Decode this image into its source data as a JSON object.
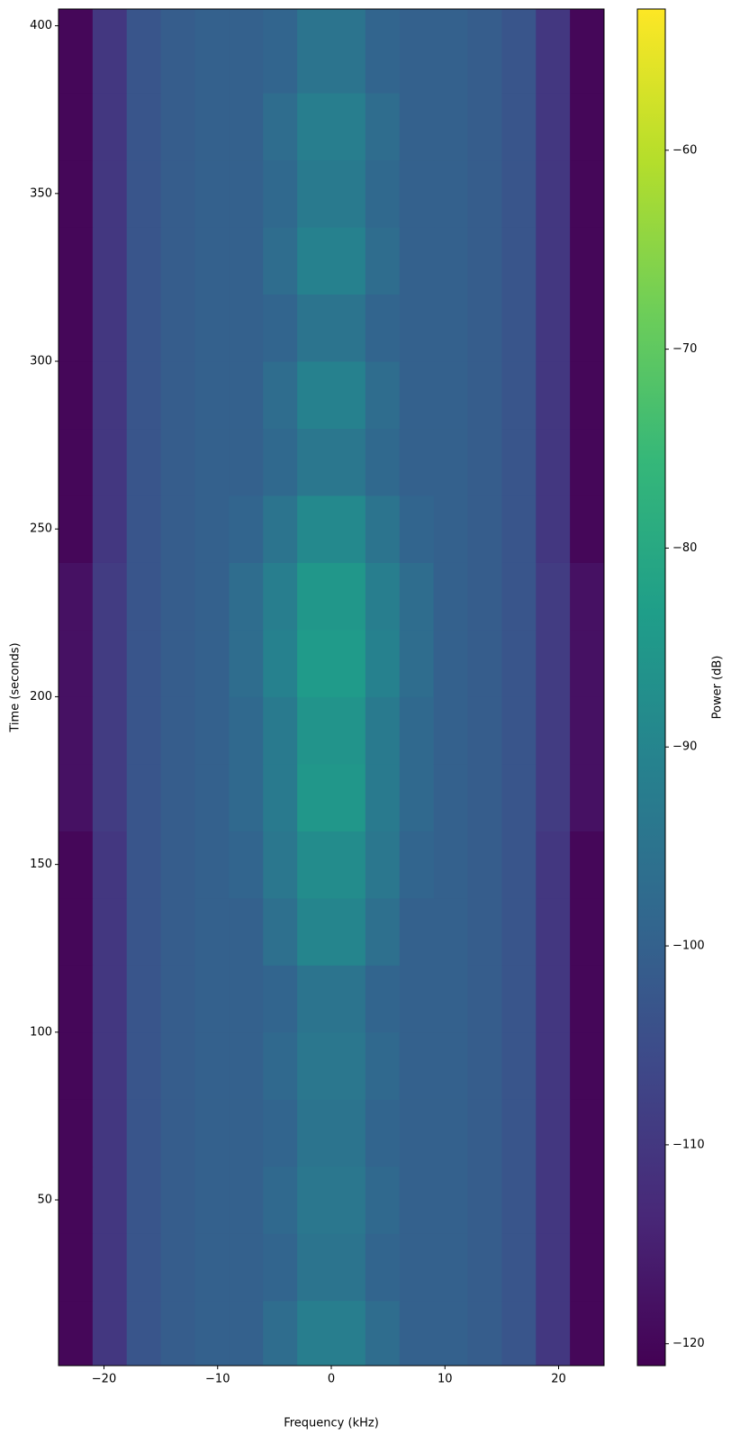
{
  "chart_data": {
    "type": "heatmap",
    "xlabel": "Frequency (kHz)",
    "ylabel": "Time (seconds)",
    "colorbar_label": "Power (dB)",
    "colormap": "viridis",
    "xlim": [
      -24,
      24
    ],
    "ylim": [
      0.6,
      405
    ],
    "xticks": [
      {
        "value": -20,
        "label": "−20"
      },
      {
        "value": -10,
        "label": "−10"
      },
      0,
      10,
      20
    ],
    "yticks": [
      50,
      100,
      150,
      200,
      250,
      300,
      350,
      400
    ],
    "zlim": [
      -121.1,
      -52.9
    ],
    "zticks": [
      {
        "value": -60,
        "label": "−60"
      },
      {
        "value": -70,
        "label": "−70"
      },
      {
        "value": -80,
        "label": "−80"
      },
      {
        "value": -90,
        "label": "−90"
      },
      {
        "value": -100,
        "label": "−100"
      },
      {
        "value": -110,
        "label": "−110"
      },
      {
        "value": -120,
        "label": "−120"
      }
    ],
    "x_edges": [
      -24,
      -21,
      -18,
      -15,
      -12,
      -9,
      -6,
      -3,
      0,
      3,
      6,
      9,
      12,
      15,
      18,
      21,
      24
    ],
    "y_edges": [
      0.6,
      20,
      40,
      60,
      80,
      100,
      120,
      140,
      160,
      180,
      200,
      220,
      240,
      260,
      280,
      300,
      320,
      340,
      360,
      380,
      405
    ],
    "z": [
      [
        -120,
        -110,
        -103,
        -101,
        -100,
        -100,
        -97,
        -92,
        -92,
        -97,
        -100,
        -100,
        -101,
        -103,
        -110,
        -120
      ],
      [
        -120,
        -110,
        -103,
        -101,
        -100,
        -100,
        -99,
        -95,
        -95,
        -99,
        -100,
        -100,
        -101,
        -103,
        -110,
        -120
      ],
      [
        -120,
        -110,
        -103,
        -101,
        -100,
        -100,
        -98,
        -94,
        -94,
        -98,
        -100,
        -100,
        -101,
        -103,
        -110,
        -120
      ],
      [
        -120,
        -110,
        -103,
        -101,
        -100,
        -100,
        -99,
        -95,
        -95,
        -99,
        -100,
        -100,
        -101,
        -103,
        -110,
        -120
      ],
      [
        -120,
        -110,
        -103,
        -101,
        -100,
        -100,
        -98,
        -94,
        -94,
        -98,
        -100,
        -100,
        -101,
        -103,
        -110,
        -120
      ],
      [
        -120,
        -110,
        -103,
        -101,
        -100,
        -100,
        -99,
        -95,
        -95,
        -99,
        -100,
        -100,
        -101,
        -103,
        -110,
        -120
      ],
      [
        -120,
        -110,
        -103,
        -101,
        -100,
        -100,
        -96,
        -90,
        -90,
        -96,
        -100,
        -100,
        -101,
        -103,
        -110,
        -120
      ],
      [
        -120,
        -110,
        -103,
        -101,
        -100,
        -99,
        -94,
        -88,
        -88,
        -94,
        -99,
        -100,
        -101,
        -103,
        -110,
        -120
      ],
      [
        -118,
        -109,
        -103,
        -101,
        -100,
        -98,
        -93,
        -85,
        -85,
        -93,
        -98,
        -100,
        -101,
        -103,
        -109,
        -118
      ],
      [
        -118,
        -109,
        -103,
        -101,
        -100,
        -98,
        -93,
        -86,
        -86,
        -93,
        -98,
        -100,
        -101,
        -103,
        -109,
        -118
      ],
      [
        -118,
        -109,
        -103,
        -101,
        -100,
        -97,
        -91,
        -84,
        -84,
        -91,
        -97,
        -100,
        -101,
        -103,
        -109,
        -118
      ],
      [
        -118,
        -109,
        -103,
        -101,
        -100,
        -97,
        -92,
        -85,
        -85,
        -92,
        -97,
        -100,
        -101,
        -103,
        -109,
        -118
      ],
      [
        -120,
        -110,
        -103,
        -101,
        -100,
        -99,
        -95,
        -89,
        -89,
        -95,
        -99,
        -100,
        -101,
        -103,
        -110,
        -120
      ],
      [
        -120,
        -110,
        -103,
        -101,
        -100,
        -100,
        -98,
        -94,
        -94,
        -98,
        -100,
        -100,
        -101,
        -103,
        -110,
        -120
      ],
      [
        -120,
        -110,
        -103,
        -101,
        -100,
        -100,
        -97,
        -91,
        -91,
        -97,
        -100,
        -100,
        -101,
        -103,
        -110,
        -120
      ],
      [
        -120,
        -110,
        -103,
        -101,
        -100,
        -100,
        -99,
        -95,
        -95,
        -99,
        -100,
        -100,
        -101,
        -103,
        -110,
        -120
      ],
      [
        -120,
        -110,
        -103,
        -101,
        -100,
        -100,
        -97,
        -91,
        -91,
        -97,
        -100,
        -100,
        -101,
        -103,
        -110,
        -120
      ],
      [
        -120,
        -110,
        -103,
        -101,
        -100,
        -100,
        -98,
        -93,
        -93,
        -98,
        -100,
        -100,
        -101,
        -103,
        -110,
        -120
      ],
      [
        -120,
        -110,
        -103,
        -101,
        -100,
        -100,
        -97,
        -92,
        -92,
        -97,
        -100,
        -100,
        -101,
        -103,
        -110,
        -120
      ],
      [
        -120,
        -110,
        -103,
        -101,
        -100,
        -100,
        -99,
        -95,
        -95,
        -99,
        -100,
        -100,
        -101,
        -103,
        -110,
        -120
      ]
    ]
  }
}
